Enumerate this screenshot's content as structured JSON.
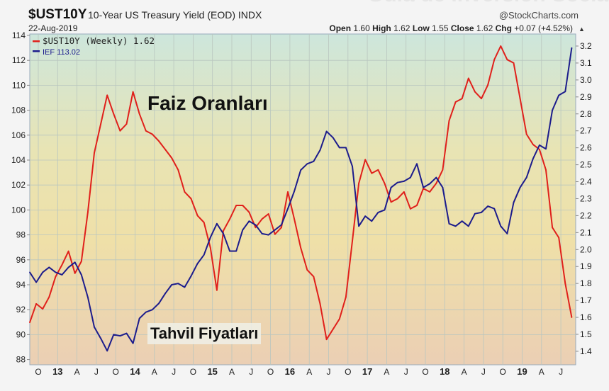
{
  "watermark": "Guía de Inversión Socialme",
  "chart_data": {
    "type": "line",
    "title": "$UST10Y",
    "subtitle": "10-Year US Treasury Yield (EOD) INDX",
    "source": "@StockCharts.com",
    "date": "22-Aug-2019",
    "quote": {
      "open_label": "Open",
      "open": "1.60",
      "high_label": "High",
      "high": "1.62",
      "low_label": "Low",
      "low": "1.55",
      "close_label": "Close",
      "close": "1.62",
      "chg_label": "Chg",
      "chg": "+0.07 (+4.52%)"
    },
    "x_start": "2012-08",
    "x_step": "1 month",
    "x_ticks": [
      "O",
      "13",
      "A",
      "J",
      "O",
      "14",
      "A",
      "J",
      "O",
      "15",
      "A",
      "J",
      "O",
      "16",
      "A",
      "J",
      "O",
      "17",
      "A",
      "J",
      "O",
      "18",
      "A",
      "J",
      "O",
      "19",
      "A",
      "J"
    ],
    "left_axis": {
      "ticks": [
        88,
        90,
        92,
        94,
        96,
        98,
        100,
        102,
        104,
        106,
        108,
        110,
        112,
        114
      ],
      "range": [
        88,
        114
      ]
    },
    "right_axis": {
      "ticks": [
        1.4,
        1.5,
        1.6,
        1.7,
        1.8,
        1.9,
        2.0,
        2.1,
        2.2,
        2.3,
        2.4,
        2.5,
        2.6,
        2.7,
        2.8,
        2.9,
        3.0,
        3.1,
        3.2
      ],
      "range": [
        1.4,
        3.2
      ]
    },
    "grid": true,
    "legend_position": "top-left",
    "series": [
      {
        "name": "$UST10Y (Weekly) 1.62",
        "axis": "right",
        "color": "#e0201b",
        "values": [
          1.57,
          1.68,
          1.65,
          1.72,
          1.84,
          1.91,
          1.99,
          1.86,
          1.93,
          2.22,
          2.57,
          2.74,
          2.91,
          2.8,
          2.7,
          2.74,
          2.93,
          2.8,
          2.7,
          2.68,
          2.64,
          2.59,
          2.54,
          2.47,
          2.34,
          2.3,
          2.2,
          2.16,
          2.01,
          1.76,
          2.11,
          2.18,
          2.26,
          2.26,
          2.22,
          2.13,
          2.18,
          2.21,
          2.09,
          2.13,
          2.34,
          2.18,
          2.01,
          1.88,
          1.84,
          1.68,
          1.47,
          1.53,
          1.59,
          1.72,
          2.05,
          2.39,
          2.53,
          2.45,
          2.47,
          2.39,
          2.28,
          2.3,
          2.34,
          2.24,
          2.26,
          2.36,
          2.34,
          2.39,
          2.47,
          2.76,
          2.87,
          2.89,
          3.01,
          2.93,
          2.89,
          2.97,
          3.12,
          3.2,
          3.12,
          3.1,
          2.89,
          2.68,
          2.62,
          2.59,
          2.47,
          2.13,
          2.07,
          1.8,
          1.6
        ]
      },
      {
        "name": "IEF 113.02",
        "axis": "left",
        "color": "#1c1c8c",
        "values": [
          95.0,
          94.2,
          95.0,
          95.4,
          95.0,
          94.8,
          95.4,
          95.8,
          94.8,
          93.0,
          90.6,
          89.7,
          88.7,
          90.0,
          89.9,
          90.1,
          89.3,
          91.3,
          91.8,
          92.0,
          92.5,
          93.3,
          94.0,
          94.1,
          93.8,
          94.7,
          95.7,
          96.4,
          97.8,
          98.9,
          98.1,
          96.7,
          96.7,
          98.4,
          99.1,
          98.8,
          98.1,
          98.0,
          98.4,
          98.8,
          100.1,
          101.5,
          103.2,
          103.7,
          103.9,
          104.8,
          106.3,
          105.8,
          105.0,
          105.0,
          103.5,
          98.7,
          99.5,
          99.1,
          99.8,
          100.0,
          101.8,
          102.2,
          102.3,
          102.6,
          103.7,
          101.8,
          102.1,
          102.6,
          101.8,
          98.9,
          98.7,
          99.1,
          98.7,
          99.7,
          99.8,
          100.3,
          100.1,
          98.7,
          98.1,
          100.6,
          101.8,
          102.6,
          104.1,
          105.2,
          104.9,
          108.0,
          109.2,
          109.5,
          113.0
        ]
      }
    ],
    "annotations": [
      "Faiz Oranları",
      "Tahvil Fiyatları"
    ]
  }
}
